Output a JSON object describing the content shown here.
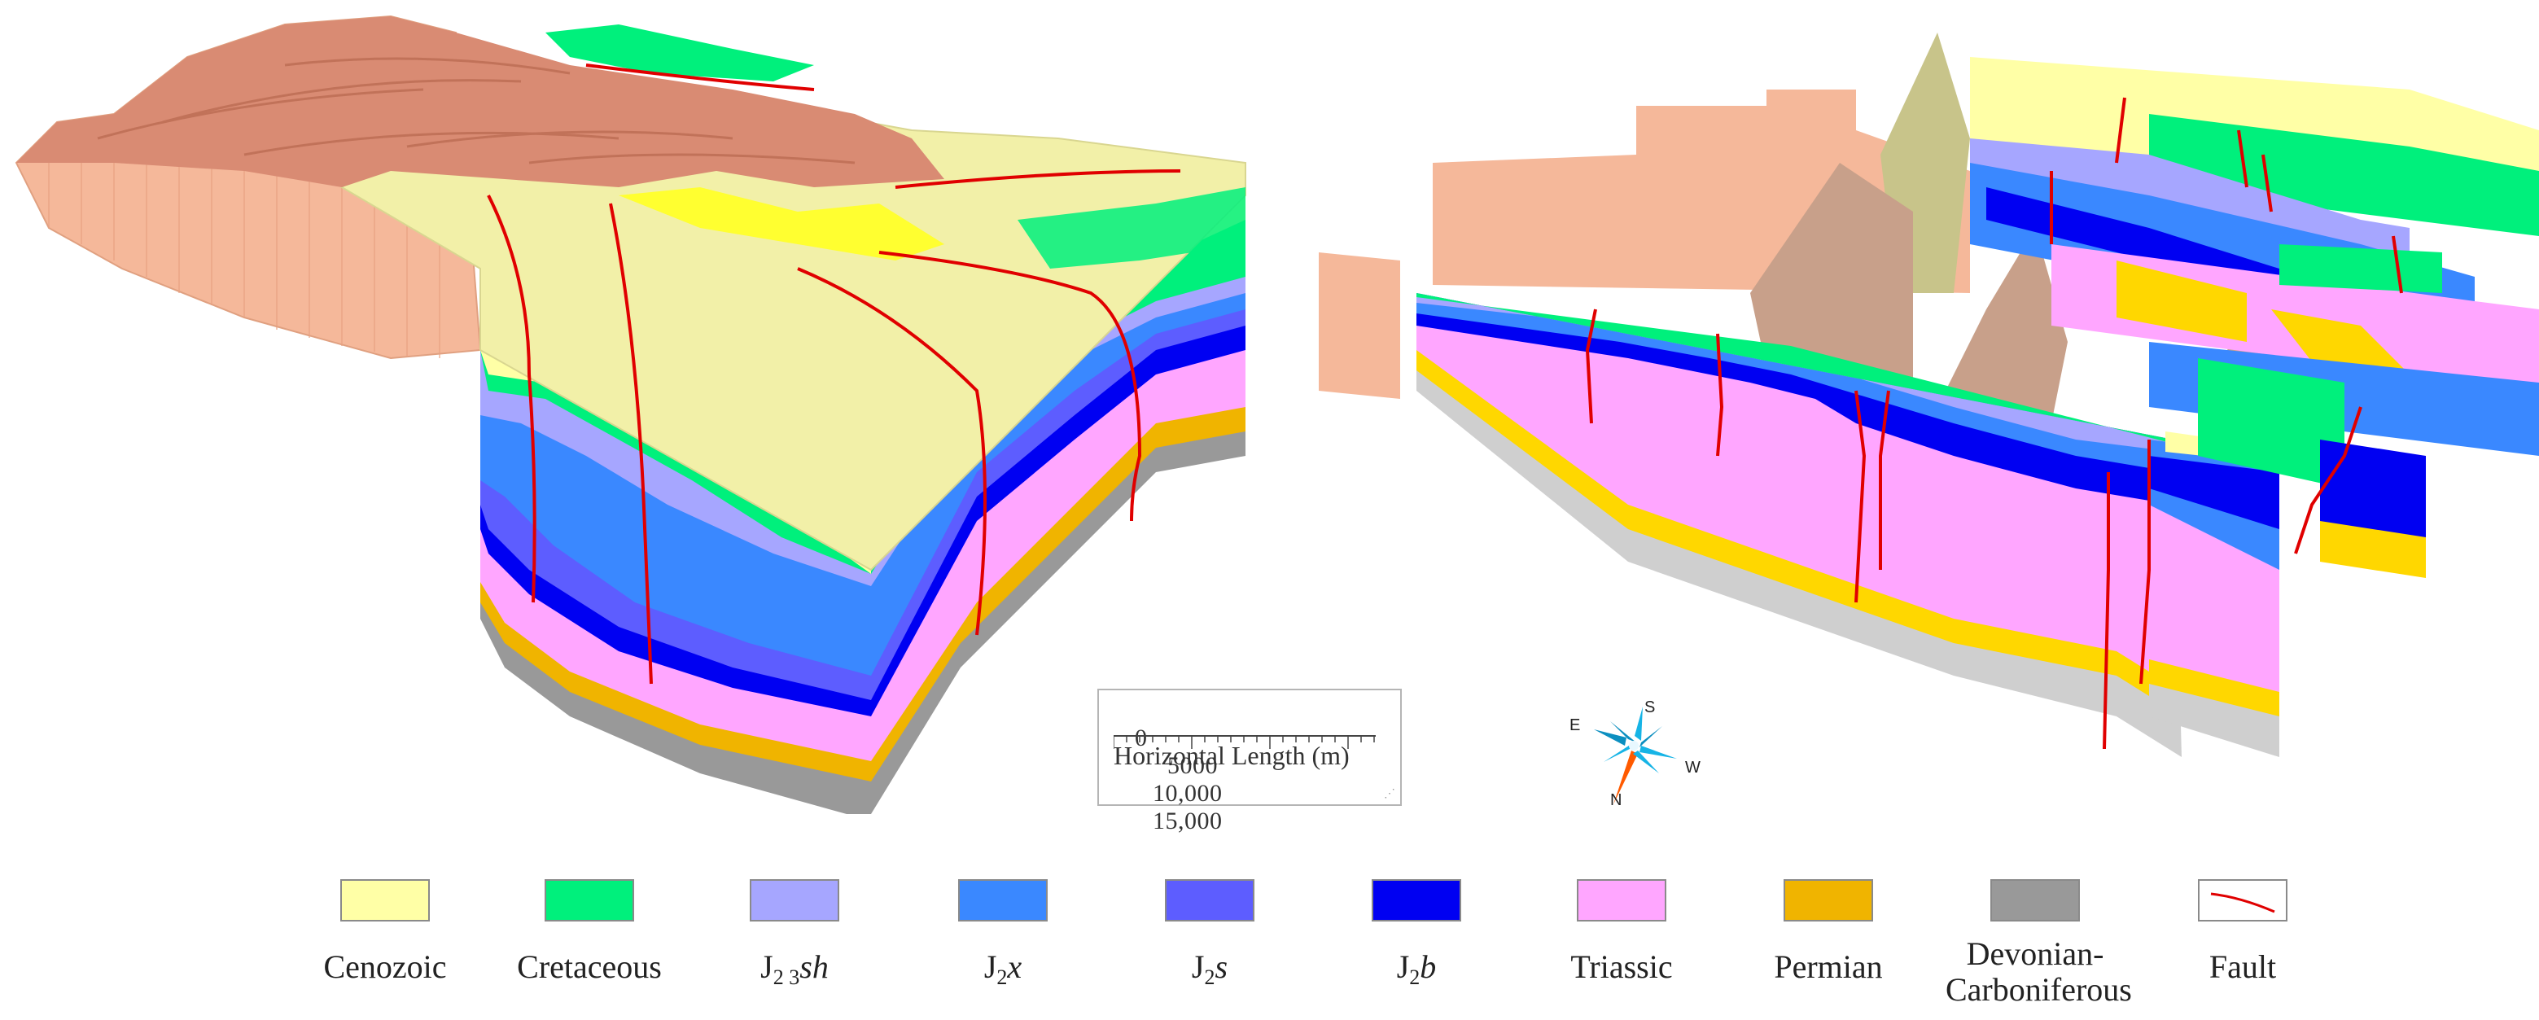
{
  "scale_bar": {
    "ticks": [
      "0",
      "5000",
      "10,000",
      "15,000"
    ],
    "title": "Horizontal Length (m)"
  },
  "compass": {
    "north": "N",
    "south": "S",
    "east": "E",
    "west": "W"
  },
  "legend": {
    "items": [
      {
        "key": "cenozoic",
        "label": "Cenozoic",
        "color": "#ffffa6"
      },
      {
        "key": "cretaceous",
        "label": "Cretaceous",
        "color": "#00f07c"
      },
      {
        "key": "j23sh",
        "label_base": "J",
        "label_sub": "2 3",
        "label_it": "sh",
        "color": "#a6a6ff"
      },
      {
        "key": "j2x",
        "label_base": "J",
        "label_sub": "2",
        "label_it": "x",
        "color": "#3a88ff"
      },
      {
        "key": "j2s",
        "label_base": "J",
        "label_sub": "2",
        "label_it": "s",
        "color": "#5d5dff"
      },
      {
        "key": "j2b",
        "label_base": "J",
        "label_sub": "2",
        "label_it": "b",
        "color": "#0000f2"
      },
      {
        "key": "triassic",
        "label": "Triassic",
        "color": "#ffa6ff"
      },
      {
        "key": "permian",
        "label": "Permian",
        "color": "#f0b400"
      },
      {
        "key": "devonian",
        "label_line1": "Devonian-",
        "label_line2": "Carboniferous",
        "color": "#999999"
      },
      {
        "key": "fault",
        "label": "Fault",
        "color": "#e00000"
      }
    ]
  },
  "colors": {
    "cenozoic": "#ffffa6",
    "cretaceous": "#00f07c",
    "j23sh": "#a6a6ff",
    "j2x": "#3a88ff",
    "j2s": "#5d5dff",
    "j2b": "#0000f2",
    "triassic": "#ffa6ff",
    "permian": "#f0b400",
    "devonian": "#999999",
    "fault": "#e00000",
    "topography": "#d98b73",
    "basement": "#f5b89a"
  }
}
